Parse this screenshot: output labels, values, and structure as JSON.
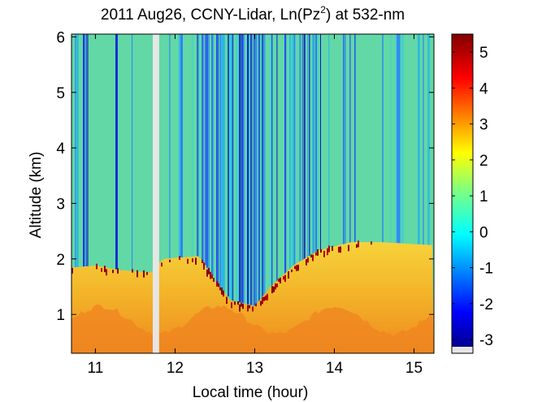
{
  "chart_data": {
    "type": "heatmap",
    "title_prefix": "2011 Aug26, CCNY-Lidar, Ln(Pz",
    "title_sup": "2",
    "title_suffix": ") at 532-nm",
    "xlabel": "Local time (hour)",
    "ylabel": "Altitude (km)",
    "xlim": [
      10.7,
      15.25
    ],
    "ylim": [
      0.3,
      6.05
    ],
    "x_ticks": [
      11,
      12,
      13,
      14,
      15
    ],
    "y_ticks": [
      1,
      2,
      3,
      4,
      5,
      6
    ],
    "colorbar": {
      "range": [
        -3.2,
        5.5
      ],
      "ticks": [
        -3,
        -2,
        -1,
        0,
        1,
        2,
        3,
        4,
        5
      ],
      "colormap": "jet",
      "missing_color": "#e6e6e6"
    },
    "data_gap": [
      11.72,
      11.8
    ],
    "boundary_layer_top_km": [
      [
        10.75,
        1.85
      ],
      [
        11.0,
        1.88
      ],
      [
        11.3,
        1.8
      ],
      [
        11.7,
        1.75
      ],
      [
        11.85,
        2.0
      ],
      [
        12.3,
        2.05
      ],
      [
        12.5,
        1.6
      ],
      [
        12.7,
        1.25
      ],
      [
        13.0,
        1.15
      ],
      [
        13.2,
        1.5
      ],
      [
        13.5,
        1.9
      ],
      [
        13.8,
        2.15
      ],
      [
        14.2,
        2.3
      ],
      [
        14.6,
        2.3
      ],
      [
        15.2,
        2.25
      ]
    ],
    "grid": false,
    "colors": {
      "background_free_troposphere": "#5fd6a8",
      "clear_air_columns": "#1030d0",
      "boundary_layer": "#f0a020",
      "cloud_base": "#7a0000"
    }
  }
}
